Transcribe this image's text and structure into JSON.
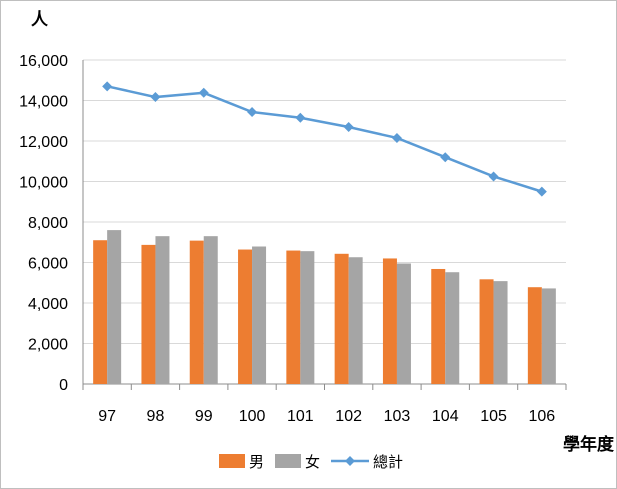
{
  "chart_data": {
    "type": "bar+line",
    "y_unit": "人",
    "x_unit": "學年度",
    "categories": [
      "97",
      "98",
      "99",
      "100",
      "101",
      "102",
      "103",
      "104",
      "105",
      "106"
    ],
    "ylim": [
      0,
      16000
    ],
    "yticks": [
      "0",
      "2,000",
      "4,000",
      "6,000",
      "8,000",
      "10,000",
      "12,000",
      "14,000",
      "16,000"
    ],
    "grid": true,
    "legend_position": "bottom",
    "series": [
      {
        "name": "男",
        "type": "bar",
        "color": "#ED7D31",
        "values": [
          7100,
          6870,
          7080,
          6640,
          6590,
          6430,
          6200,
          5680,
          5170,
          4780
        ]
      },
      {
        "name": "女",
        "type": "bar",
        "color": "#A5A5A5",
        "values": [
          7600,
          7300,
          7300,
          6790,
          6560,
          6260,
          5950,
          5520,
          5080,
          4720
        ]
      },
      {
        "name": "總計",
        "type": "line",
        "color": "#5B9BD5",
        "values": [
          14700,
          14170,
          14380,
          13430,
          13150,
          12690,
          12150,
          11200,
          10250,
          9500
        ]
      }
    ]
  }
}
